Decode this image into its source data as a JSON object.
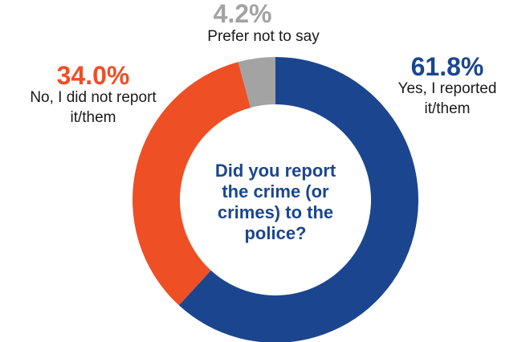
{
  "chart_data": {
    "type": "donut",
    "center_text": "Did you report the crime (or crimes) to the police?",
    "categories": [
      "Yes, I reported it/them",
      "No, I did not report it/them",
      "Prefer not to say"
    ],
    "values": [
      61.8,
      34.0,
      4.2
    ],
    "value_labels": [
      "61.8%",
      "34.0%",
      "4.2%"
    ],
    "colors": [
      "#1b468f",
      "#ee4f25",
      "#a3a3a3"
    ]
  }
}
